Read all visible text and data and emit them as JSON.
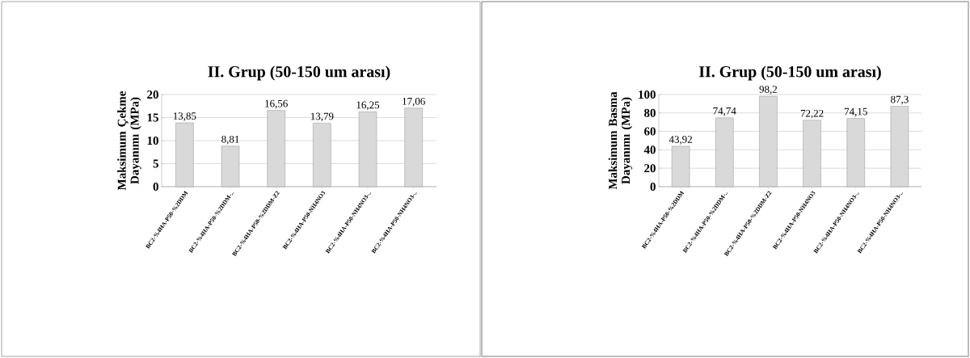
{
  "chart_data": [
    {
      "type": "bar",
      "title": "II. Grup (50-150 um arası)",
      "ylabel": "Maksimum Çekme Dayanımı (MPa)",
      "categories": [
        "BC2-%4HA-P50-%2DDM",
        "BC2-%4HA-P50-%2DDM-..",
        "BC2-%4HA-P50-%2DDM-Z2",
        "BC2-%4HA-P50-NH4NO3",
        "BC2-%4HA-P50-NH4NO3-..",
        "BC2-%4HA-P50-NH4NO3-.."
      ],
      "values": [
        13.85,
        8.81,
        16.56,
        13.79,
        16.25,
        17.06
      ],
      "value_labels": [
        "13,85",
        "8,81",
        "16,56",
        "13,79",
        "16,25",
        "17,06"
      ],
      "color": "#d9d9d9",
      "ylim": [
        0,
        20
      ],
      "yticks": [
        0,
        5,
        10,
        15,
        20
      ],
      "grid": "y"
    },
    {
      "type": "bar",
      "title": "II. Grup (50-150 um arası)",
      "ylabel": "Maksimum Basma Dayanımı (MPa)",
      "categories": [
        "BC2-%4HA-P50-%2DDM",
        "BC2-%4HA-P50-%2DDM-..",
        "BC2-%4HA-P50-%2DDM-Z2",
        "BC2-%4HA-P50-NH4NO3",
        "BC2-%4HA-P50-NH4NO3-..",
        "BC2-%4HA-P50-NH4NO3-.."
      ],
      "values": [
        43.92,
        74.74,
        98.2,
        72.22,
        74.15,
        87.3
      ],
      "value_labels": [
        "43,92",
        "74,74",
        "98,2",
        "72,22",
        "74,15",
        "87,3"
      ],
      "color": "#d9d9d9",
      "ylim": [
        0,
        100
      ],
      "yticks": [
        0,
        20,
        40,
        60,
        80,
        100
      ],
      "grid": "y"
    }
  ]
}
